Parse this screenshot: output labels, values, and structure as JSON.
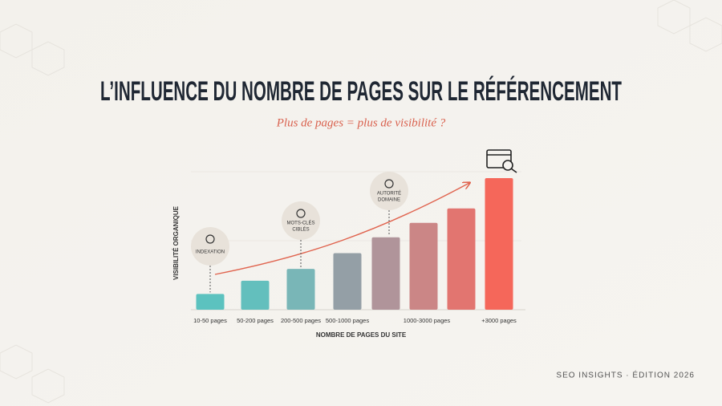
{
  "chart_data": {
    "type": "bar",
    "title": "L’INFLUENCE DU NOMBRE DE PAGES SUR LE RÉFÉRENCEMENT",
    "subtitle": "Plus de pages = plus de visibilité ?",
    "y_label": "VISIBILITÉ ORGANIQUE",
    "x_label": "NOMBRE DE PAGES DU SITE",
    "categories": [
      "10-50 pages",
      "50-200 pages",
      "200-500 pages",
      "500-1000 pages",
      null,
      "1000-3000 pages",
      null,
      "+3000 pages"
    ],
    "values": [
      12,
      22,
      31,
      43,
      55,
      66,
      77,
      100
    ],
    "colors": [
      "#5cc2bf",
      "#63bfbd",
      "#79b6b7",
      "#949fa6",
      "#b0949a",
      "#cb8686",
      "#e27570",
      "#f5675a"
    ],
    "ylim": [
      0,
      100
    ],
    "annotations": [
      [
        "INDEXATION"
      ],
      [
        "MOTS-CLÉS",
        "CIBLÉS"
      ],
      [
        "AUTORITÉ",
        "DOMAINE"
      ]
    ],
    "footer": "SEO INSIGHTS · ÉDITION 2026"
  }
}
